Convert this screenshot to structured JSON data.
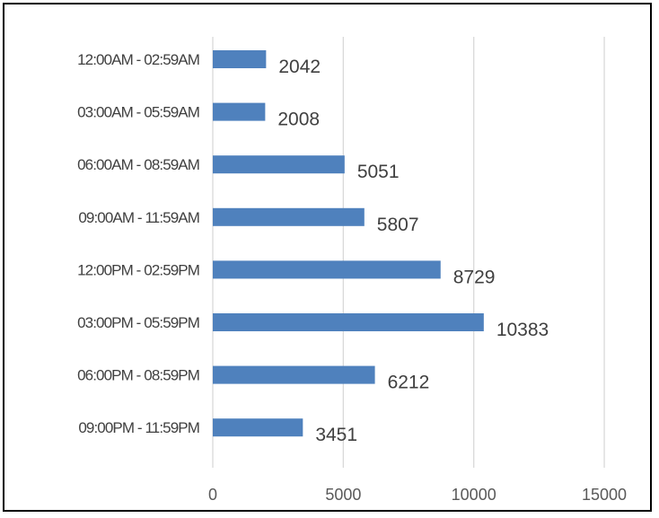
{
  "chart_data": {
    "type": "bar",
    "orientation": "horizontal",
    "categories": [
      "12:00AM - 02:59AM",
      "03:00AM - 05:59AM",
      "06:00AM - 08:59AM",
      "09:00AM - 11:59AM",
      "12:00PM - 02:59PM",
      "03:00PM - 05:59PM",
      "06:00PM - 08:59PM",
      "09:00PM - 11:59PM"
    ],
    "values": [
      2042,
      2008,
      5051,
      5807,
      8729,
      10383,
      6212,
      3451
    ],
    "xlim": [
      0,
      15000
    ],
    "xticks": [
      0,
      5000,
      10000,
      15000
    ],
    "xtick_labels": [
      "0",
      "5000",
      "10000",
      "15000"
    ],
    "grid": true,
    "data_labels": true,
    "bar_color": "#4f81bd",
    "title": "",
    "xlabel": "",
    "ylabel": ""
  }
}
